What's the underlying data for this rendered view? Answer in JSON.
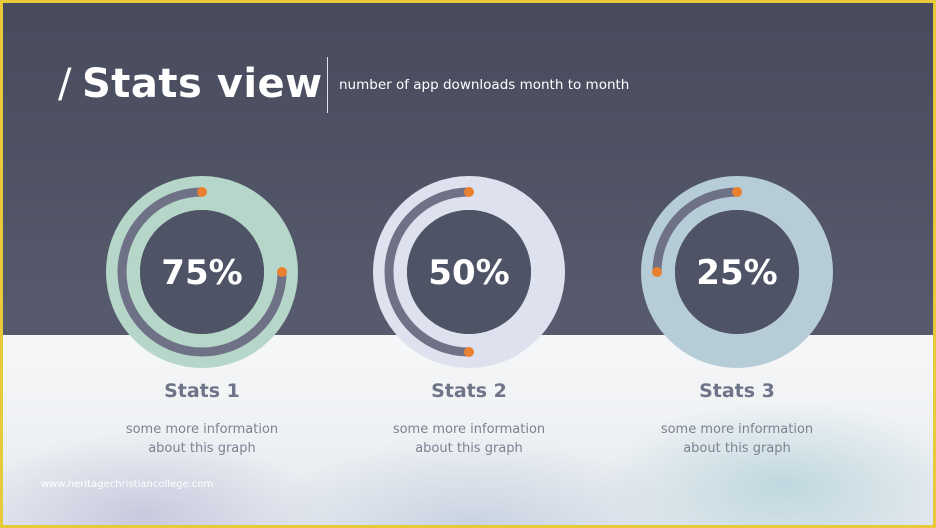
{
  "title": {
    "prefix": "/",
    "text": "Stats view"
  },
  "subtitle": "number of app downloads month to month",
  "watermark": "www.heritagechristiancollege.com",
  "colors": {
    "track": "#6f7287",
    "dot": "#e9802f",
    "inner": "#4f5366"
  },
  "chart_data": {
    "type": "pie",
    "charts": [
      {
        "label": "Stats 1",
        "value": 75,
        "display": "75%",
        "info": [
          "some more information",
          "about this graph"
        ],
        "ring_color": "#b5d6c8"
      },
      {
        "label": "Stats 2",
        "value": 50,
        "display": "50%",
        "info": [
          "some more information",
          "about this graph"
        ],
        "ring_color": "#dde2ee"
      },
      {
        "label": "Stats 3",
        "value": 25,
        "display": "25%",
        "info": [
          "some more information",
          "about this graph"
        ],
        "ring_color": "#b6cdd8"
      }
    ]
  }
}
